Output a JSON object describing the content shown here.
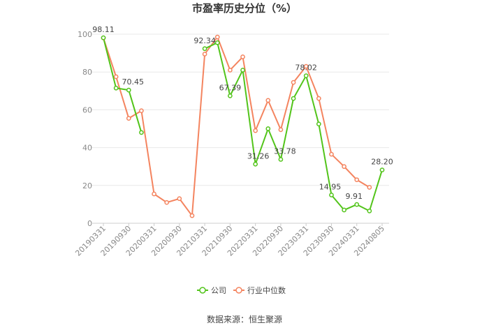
{
  "chart_data": {
    "type": "line",
    "title": "市盈率历史分位（%）",
    "source": "数据来源：恒生聚源",
    "ylim": [
      0,
      100
    ],
    "yticks": [
      0,
      20,
      40,
      60,
      80,
      100
    ],
    "grid": true,
    "legend_position": "bottom-center",
    "x": [
      "20190331",
      "20190630",
      "20190930",
      "20191231",
      "20200331",
      "20200630",
      "20200930",
      "20201231",
      "20210331",
      "20210630",
      "20210930",
      "20211231",
      "20220331",
      "20220630",
      "20220930",
      "20221231",
      "20230331",
      "20230630",
      "20230930",
      "20231231",
      "20240331",
      "20240630",
      "20240805"
    ],
    "xtick_labels": [
      "20190331",
      "20190930",
      "20200331",
      "20200930",
      "20210331",
      "20210930",
      "20220331",
      "20220930",
      "20230331",
      "20230930",
      "20240331",
      "20240805"
    ],
    "series": [
      {
        "name": "公司",
        "color": "#52c41a",
        "values": [
          98.11,
          71.5,
          70.45,
          48.0,
          null,
          null,
          null,
          null,
          92.34,
          95.5,
          67.39,
          81.0,
          31.26,
          50.0,
          33.78,
          66.0,
          78.02,
          52.5,
          14.95,
          7.0,
          9.91,
          6.5,
          28.2
        ]
      },
      {
        "name": "行业中位数",
        "color": "#f4845f",
        "values": [
          98.0,
          77.5,
          55.5,
          59.5,
          15.5,
          11.0,
          13.0,
          4.0,
          89.5,
          98.5,
          81.0,
          88.0,
          49.0,
          65.0,
          49.5,
          74.5,
          83.0,
          66.0,
          36.5,
          30.0,
          23.0,
          19.0,
          null
        ]
      }
    ],
    "data_labels": [
      {
        "series": 0,
        "index": 0,
        "text": "98.11"
      },
      {
        "series": 0,
        "index": 2,
        "text": "70.45"
      },
      {
        "series": 0,
        "index": 8,
        "text": "92.34"
      },
      {
        "series": 0,
        "index": 10,
        "text": "67.39"
      },
      {
        "series": 0,
        "index": 12,
        "text": "31.26"
      },
      {
        "series": 0,
        "index": 14,
        "text": "33.78"
      },
      {
        "series": 0,
        "index": 16,
        "text": "78.02"
      },
      {
        "series": 0,
        "index": 18,
        "text": "14.95"
      },
      {
        "series": 0,
        "index": 20,
        "text": "9.91"
      },
      {
        "series": 0,
        "index": 22,
        "text": "28.20"
      }
    ]
  }
}
